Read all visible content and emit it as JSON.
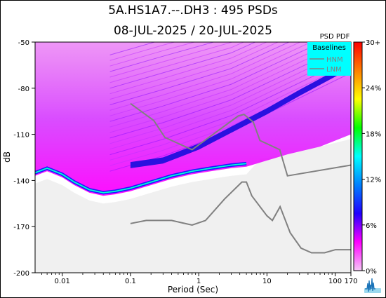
{
  "chart_data": {
    "type": "heatmap",
    "title_line1": "5A.HS1A7.--.DH3 : 495 PSDs",
    "title_line2": "08-JUL-2025 / 20-JUL-2025",
    "xlabel": "Period (Sec)",
    "ylabel": "dB",
    "x_scale": "log",
    "xlim": [
      0.004,
      170
    ],
    "ylim": [
      -200,
      -50
    ],
    "x_ticks": [
      {
        "value": 0.01,
        "label": "0.01"
      },
      {
        "value": 0.1,
        "label": "0.1"
      },
      {
        "value": 1,
        "label": "1"
      },
      {
        "value": 10,
        "label": "10"
      },
      {
        "value": 100,
        "label": "100"
      },
      {
        "value": 170,
        "label": "170"
      }
    ],
    "y_ticks": [
      -50,
      -80,
      -110,
      -140,
      -170,
      -200
    ],
    "colorbar": {
      "title": "PSD PDF",
      "ticks": [
        "30+",
        "24%",
        "18%",
        "12%",
        "6%",
        "0%"
      ],
      "tick_fractions": [
        1.0,
        0.8,
        0.6,
        0.4,
        0.2,
        0.0
      ],
      "colors": [
        "#f5c8f5",
        "#ff00ff",
        "#2000ff",
        "#0080ff",
        "#00ffff",
        "#00ff00",
        "#ffff00",
        "#ff8000",
        "#ff0000"
      ]
    },
    "legend": {
      "title": "Baselines",
      "entries": [
        "HNM",
        "LNM"
      ],
      "background": "#00ffff",
      "placement": "top-right"
    },
    "noise_model_region_color": "#f0f0f0",
    "baseline_color": "#808080",
    "series": [
      {
        "name": "HNM",
        "x": [
          0.1,
          0.22,
          0.32,
          0.8,
          3.8,
          4.6,
          6.3,
          7.9,
          15.4,
          20,
          170
        ],
        "y": [
          -90,
          -101,
          -112,
          -120,
          -98,
          -97,
          -102,
          -114,
          -120,
          -137,
          -130
        ]
      },
      {
        "name": "LNM",
        "x": [
          0.1,
          0.17,
          0.4,
          0.8,
          1.26,
          2.4,
          4.3,
          5.0,
          6.0,
          10.0,
          12.0,
          15.6,
          21.9,
          31.6,
          45,
          70,
          101,
          154,
          170
        ],
        "y": [
          -168,
          -166,
          -166,
          -169,
          -166,
          -152,
          -141,
          -141,
          -150,
          -163,
          -166,
          -157,
          -174,
          -184,
          -187,
          -187,
          -185,
          -185,
          -185
        ]
      }
    ],
    "pdf_mode": [
      {
        "x": 0.004,
        "y": -135
      },
      {
        "x": 0.006,
        "y": -132
      },
      {
        "x": 0.01,
        "y": -136
      },
      {
        "x": 0.015,
        "y": -141
      },
      {
        "x": 0.025,
        "y": -146
      },
      {
        "x": 0.04,
        "y": -148
      },
      {
        "x": 0.06,
        "y": -147
      },
      {
        "x": 0.1,
        "y": -145
      },
      {
        "x": 0.2,
        "y": -141
      },
      {
        "x": 0.4,
        "y": -137
      },
      {
        "x": 0.8,
        "y": -134
      },
      {
        "x": 1.5,
        "y": -132
      },
      {
        "x": 3,
        "y": -130
      },
      {
        "x": 5,
        "y": -129
      }
    ],
    "microseism_band": [
      {
        "x": 0.1,
        "y": -130
      },
      {
        "x": 0.3,
        "y": -127
      },
      {
        "x": 1,
        "y": -118
      },
      {
        "x": 3,
        "y": -107
      },
      {
        "x": 10,
        "y": -95
      },
      {
        "x": 30,
        "y": -83
      },
      {
        "x": 170,
        "y": -65
      }
    ]
  }
}
